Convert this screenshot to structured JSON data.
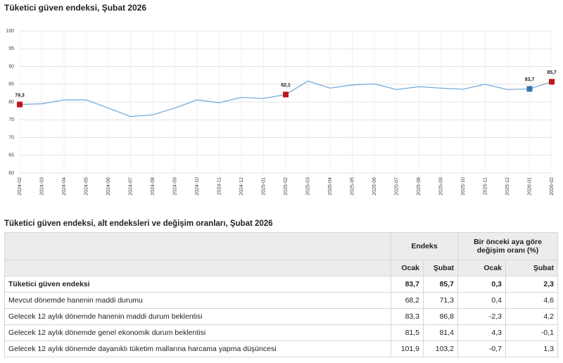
{
  "chart_data": {
    "type": "line",
    "title": "Tüketici güven endeksi, Şubat 2026",
    "x": [
      "2024-02",
      "2024-03",
      "2024-04",
      "2024-05",
      "2024-06",
      "2024-07",
      "2024-08",
      "2024-09",
      "2024-10",
      "2024-11",
      "2024-12",
      "2025-01",
      "2025-02",
      "2025-03",
      "2025-04",
      "2025-05",
      "2025-06",
      "2025-07",
      "2025-08",
      "2025-09",
      "2025-10",
      "2025-11",
      "2025-12",
      "2026-01",
      "2026-02"
    ],
    "values": [
      79.3,
      79.5,
      80.6,
      80.6,
      78.3,
      75.9,
      76.4,
      78.3,
      80.6,
      79.8,
      81.3,
      81.0,
      82.1,
      85.9,
      83.9,
      84.8,
      85.1,
      83.5,
      84.3,
      83.9,
      83.6,
      85.0,
      83.5,
      83.7,
      85.7
    ],
    "value_labels": [
      "79,3",
      null,
      null,
      null,
      null,
      null,
      null,
      null,
      null,
      null,
      null,
      null,
      "82,1",
      null,
      null,
      null,
      null,
      null,
      null,
      null,
      null,
      null,
      null,
      "83,7",
      "85,7"
    ],
    "point_colors": [
      "#c0161d",
      null,
      null,
      null,
      null,
      null,
      null,
      null,
      null,
      null,
      null,
      null,
      "#c0161d",
      null,
      null,
      null,
      null,
      null,
      null,
      null,
      null,
      null,
      null,
      "#2f77b5",
      "#c0161d"
    ],
    "color": "#6ea6d8",
    "ylim": [
      60,
      100
    ],
    "yticks": [
      60,
      65,
      70,
      75,
      80,
      85,
      90,
      95,
      100
    ],
    "grid": true
  },
  "table": {
    "title": "Tüketici güven endeksi, alt endeksleri ve değişim oranları, Şubat 2026",
    "groups": [
      "Endeks",
      "Bir önceki aya göre değişim oranı (%)"
    ],
    "columns": [
      "Ocak",
      "Şubat",
      "Ocak",
      "Şubat"
    ],
    "rows": [
      [
        "Tüketici güven endeksi",
        "83,7",
        "85,7",
        "0,3",
        "2,3"
      ],
      [
        "Mevcut dönemde hanenin maddi durumu",
        "68,2",
        "71,3",
        "0,4",
        "4,6"
      ],
      [
        "Gelecek 12 aylık dönemde hanenin maddi durum beklentisi",
        "83,3",
        "86,8",
        "-2,3",
        "4,2"
      ],
      [
        "Gelecek 12 aylık dönemde genel ekonomik durum beklentisi",
        "81,5",
        "81,4",
        "4,3",
        "-0,1"
      ],
      [
        "Gelecek 12 aylık dönemde dayanıklı tüketim mallarına harcama yapma düşüncesi",
        "101,9",
        "103,2",
        "-0,7",
        "1,3"
      ]
    ]
  }
}
